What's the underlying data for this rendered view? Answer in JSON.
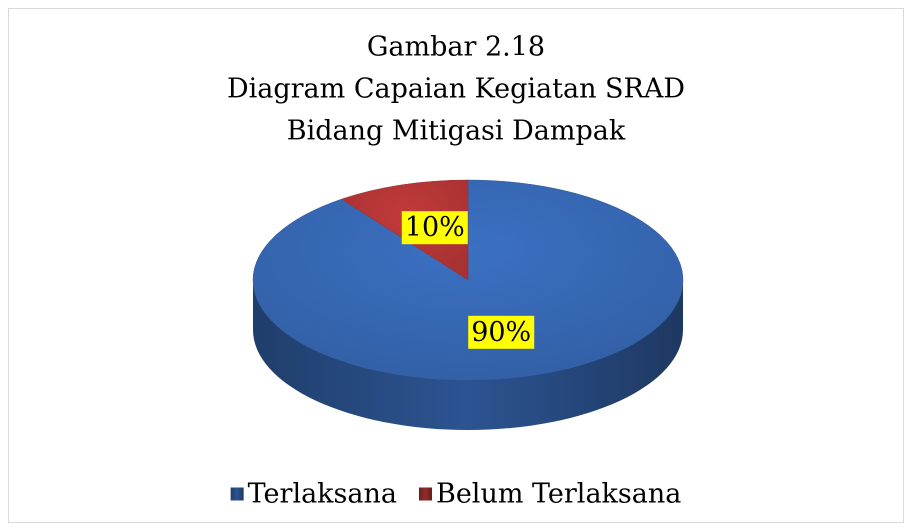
{
  "chart_data": {
    "type": "pie",
    "title": [
      "Gambar 2.18",
      "Diagram Capaian Kegiatan SRAD",
      "Bidang Mitigasi Dampak"
    ],
    "categories": [
      "Terlaksana",
      "Belum Terlaksana"
    ],
    "values": [
      90,
      10
    ],
    "value_labels": [
      "90%",
      "10%"
    ],
    "colors": [
      "#3b70c2",
      "#c23a3a"
    ],
    "legend": "bottom"
  }
}
